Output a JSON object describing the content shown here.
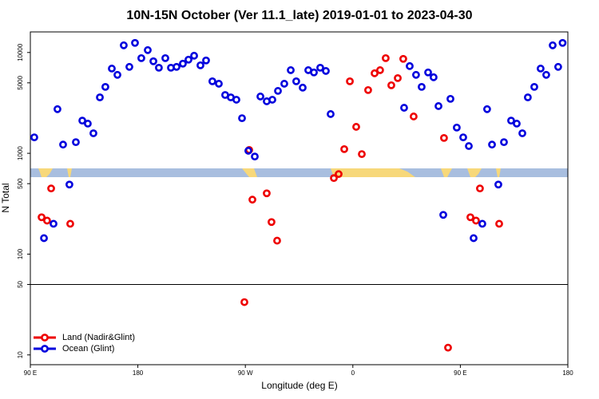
{
  "chart_data": {
    "type": "scatter",
    "title": "10N-15N October (Ver 11.1_late)   2019-01-01 to 2023-04-30",
    "xlabel": "Longitude (deg E)",
    "ylabel": "N Total",
    "xlim": [
      90,
      540
    ],
    "ylim": [
      8,
      16000
    ],
    "log_y": true,
    "xticks": [
      {
        "value": 90,
        "label": "90 E"
      },
      180,
      {
        "value": 270,
        "label": "90 W"
      },
      {
        "value": 360,
        "label": "0"
      },
      {
        "value": 450,
        "label": "90 E"
      },
      {
        "value": 540,
        "label": "180"
      }
    ],
    "yticks": [
      10,
      50,
      100,
      500,
      1000,
      5000,
      10000
    ],
    "hlines": [
      50
    ],
    "legend": "lower left",
    "series": [
      {
        "name": "Land (Nadir&Glint)",
        "color": "#ee0000",
        "x": [
          99.4,
          104.0,
          107.4,
          123.4,
          269.2,
          273.2,
          275.9,
          287.9,
          291.9,
          296.6,
          344.1,
          348.1,
          352.8,
          357.5,
          362.8,
          367.5,
          372.8,
          378.2,
          382.8,
          387.5,
          392.2,
          397.6,
          402.2,
          410.9,
          436.3,
          439.7,
          458.4,
          463.1,
          466.4,
          482.5
        ],
        "values": [
          232,
          215,
          448,
          200,
          33.4,
          1080,
          347,
          401,
          208,
          136,
          568,
          622,
          1100,
          5180,
          1830,
          982,
          4240,
          6220,
          6680,
          8790,
          4730,
          5570,
          8650,
          2320,
          1420,
          11.8,
          232,
          215,
          448,
          200
        ]
      },
      {
        "name": "Ocean (Glint)",
        "color": "#0000dd",
        "x": [
          93.3,
          101.4,
          109.4,
          112.7,
          117.4,
          122.7,
          128.1,
          133.5,
          138.1,
          142.8,
          148.2,
          152.8,
          158.2,
          162.9,
          168.2,
          172.9,
          177.6,
          182.9,
          188.3,
          193.0,
          197.6,
          203.0,
          207.7,
          212.4,
          217.7,
          222.4,
          227.1,
          232.4,
          237.1,
          242.4,
          247.8,
          253.1,
          257.8,
          262.5,
          267.2,
          272.5,
          277.9,
          282.6,
          287.9,
          292.6,
          297.3,
          302.6,
          308.0,
          312.6,
          318.0,
          322.7,
          327.4,
          332.7,
          337.4,
          341.4,
          402.9,
          407.6,
          412.9,
          417.6,
          423.0,
          427.6,
          431.7,
          435.7,
          441.7,
          447.0,
          452.4,
          457.1,
          461.1,
          468.4,
          472.4,
          476.5,
          481.8,
          486.5,
          492.5,
          497.2,
          501.9,
          506.5,
          511.9,
          517.2,
          521.9,
          527.3,
          531.9,
          535.6
        ],
        "values": [
          1440,
          144,
          200,
          2740,
          1220,
          490,
          1290,
          2110,
          1970,
          1580,
          3590,
          4560,
          6930,
          6000,
          11780,
          7200,
          12450,
          8790,
          10560,
          8190,
          7060,
          8790,
          7060,
          7200,
          7750,
          8490,
          9290,
          7460,
          8340,
          5180,
          4900,
          3790,
          3590,
          3400,
          2230,
          1060,
          929,
          3660,
          3280,
          3400,
          4160,
          4900,
          6680,
          5180,
          4480,
          6680,
          6340,
          7060,
          6560,
          2450,
          2830,
          7330,
          6000,
          4560,
          6340,
          5680,
          2940,
          245,
          3470,
          1800,
          1440,
          1180,
          144,
          200,
          2740,
          1220,
          490,
          1290,
          2110,
          1970,
          1580,
          3590,
          4560,
          6930,
          6000,
          11780,
          7200,
          12450
        ]
      }
    ]
  }
}
